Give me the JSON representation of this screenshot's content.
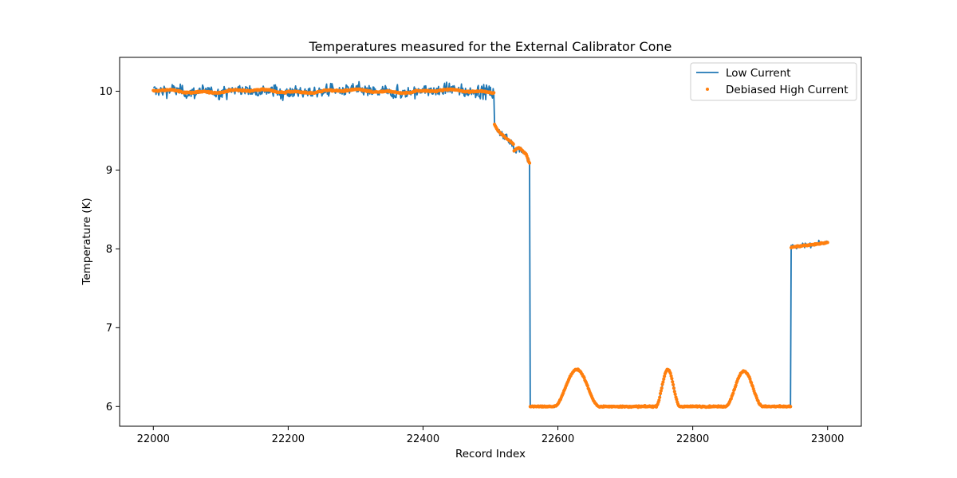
{
  "chart_data": {
    "type": "line",
    "title": "Temperatures measured for the External Calibrator Cone",
    "xlabel": "Record Index",
    "ylabel": "Temperature (K)",
    "xlim": [
      21950,
      23050
    ],
    "ylim": [
      5.75,
      10.43
    ],
    "xticks": [
      22000,
      22200,
      22400,
      22600,
      22800,
      23000
    ],
    "yticks": [
      6,
      7,
      8,
      9,
      10
    ],
    "grid": false,
    "legend_position": "top-right",
    "x_range": [
      22000,
      23000
    ],
    "segments": [
      {
        "x_start": 22000,
        "x_end": 22505,
        "level": 10.0
      },
      {
        "x_start": 22506,
        "x_end": 22558,
        "level": "ramp 9.58 to 9.12"
      },
      {
        "x_start": 22560,
        "x_end": 22945,
        "level": 6.0,
        "bumps": [
          {
            "center": 22628,
            "peak": 6.47
          },
          {
            "center": 22763,
            "peak": 6.47
          },
          {
            "center": 22876,
            "peak": 6.45
          }
        ]
      },
      {
        "x_start": 22946,
        "x_end": 23000,
        "level": "8.02 to 8.08"
      }
    ],
    "series": [
      {
        "name": "Low Current",
        "style": "line",
        "color": "#1f77b4"
      },
      {
        "name": "Debiased High Current",
        "style": "scatter",
        "color": "#ff7f0e"
      }
    ]
  }
}
